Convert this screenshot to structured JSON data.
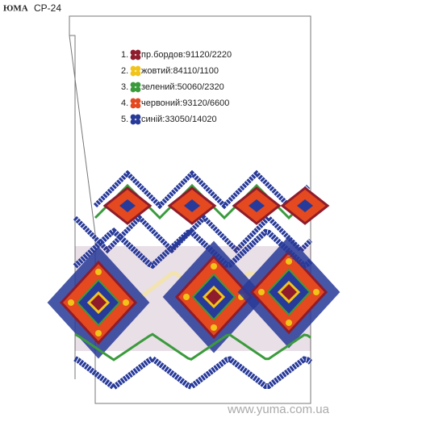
{
  "header": {
    "brand": "ЮМА",
    "code": "СР-24"
  },
  "legend": {
    "items": [
      {
        "number": "1.",
        "label": "пр.бордов:91120/2220",
        "color": "#8e1c2c"
      },
      {
        "number": "2.",
        "label": "жовтий:84110/1100",
        "color": "#f2c419"
      },
      {
        "number": "3.",
        "label": "зелений:50060/2320",
        "color": "#3a9b3c"
      },
      {
        "number": "4.",
        "label": "червоний:93120/6600",
        "color": "#e4491f"
      },
      {
        "number": "5.",
        "label": "синій:33050/14020",
        "color": "#283a99"
      }
    ]
  },
  "watermark": "www.yuma.com.ua"
}
